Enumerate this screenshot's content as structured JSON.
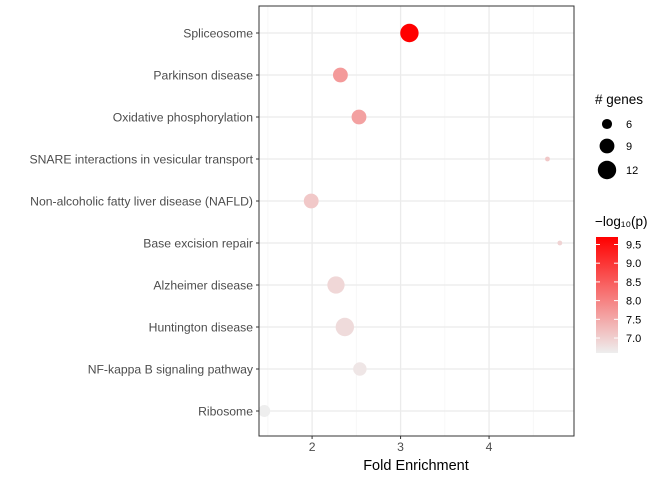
{
  "chart_data": {
    "type": "scatter",
    "xlabel": "Fold Enrichment",
    "ylabel": "",
    "xlim": [
      1.4,
      4.96
    ],
    "x_ticks": [
      2,
      3,
      4
    ],
    "grid": true,
    "categories": [
      "Spliceosome",
      "Parkinson disease",
      "Oxidative phosphorylation",
      "SNARE interactions in vesicular transport",
      "Non-alcoholic fatty liver disease (NAFLD)",
      "Base excision repair",
      "Alzheimer disease",
      "Huntington disease",
      "NF-kappa B signaling pathway",
      "Ribosome"
    ],
    "points": [
      {
        "term": "Spliceosome",
        "fold_enrichment": 3.1,
        "genes": 12,
        "neg_log10_p": 9.7
      },
      {
        "term": "Parkinson disease",
        "fold_enrichment": 2.32,
        "genes": 9,
        "neg_log10_p": 7.7
      },
      {
        "term": "Oxidative phosphorylation",
        "fold_enrichment": 2.53,
        "genes": 9,
        "neg_log10_p": 7.6
      },
      {
        "term": "SNARE interactions in vesicular transport",
        "fold_enrichment": 4.66,
        "genes": 4,
        "neg_log10_p": 7.1
      },
      {
        "term": "Non-alcoholic fatty liver disease (NAFLD)",
        "fold_enrichment": 1.99,
        "genes": 9,
        "neg_log10_p": 7.1
      },
      {
        "term": "Base excision repair",
        "fold_enrichment": 4.8,
        "genes": 4,
        "neg_log10_p": 6.95
      },
      {
        "term": "Alzheimer disease",
        "fold_enrichment": 2.27,
        "genes": 11,
        "neg_log10_p": 6.9
      },
      {
        "term": "Huntington disease",
        "fold_enrichment": 2.37,
        "genes": 12,
        "neg_log10_p": 6.85
      },
      {
        "term": "NF-kappa B signaling pathway",
        "fold_enrichment": 2.54,
        "genes": 8,
        "neg_log10_p": 6.7
      },
      {
        "term": "Ribosome",
        "fold_enrichment": 1.46,
        "genes": 7,
        "neg_log10_p": 6.6
      }
    ],
    "size_legend": {
      "title": "# genes",
      "values": [
        6,
        9,
        12
      ],
      "labels": [
        "6",
        "9",
        "12"
      ]
    },
    "color_legend": {
      "title": "−log₁₀(p)",
      "range": [
        6.6,
        9.7
      ],
      "ticks": [
        7.0,
        7.5,
        8.0,
        8.5,
        9.0,
        9.5
      ],
      "tick_labels": [
        "7.0",
        "7.5",
        "8.0",
        "8.5",
        "9.0",
        "9.5"
      ],
      "low_color": "#eeeeee",
      "high_color": "#ff0000"
    },
    "colors": {
      "panel_background": "#ffffff",
      "panel_border": "#333333",
      "grid_major": "#ebebeb",
      "grid_minor": "#f5f5f5",
      "low": "#eeeeee",
      "high": "#ff0000"
    }
  }
}
